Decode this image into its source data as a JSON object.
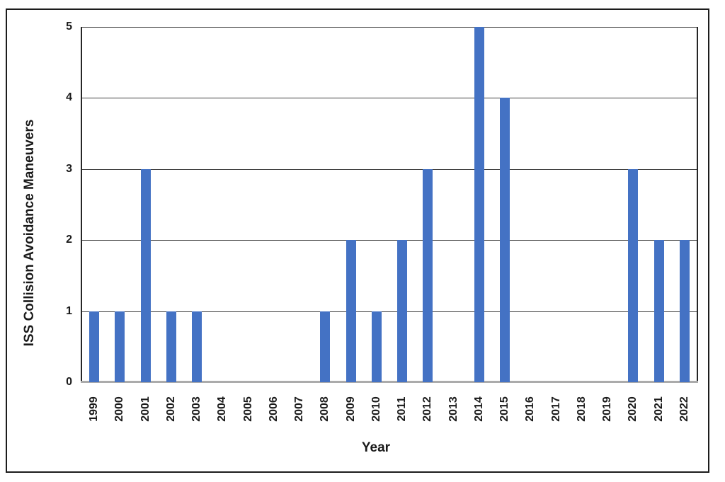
{
  "chart_data": {
    "type": "bar",
    "title": "",
    "xlabel": "Year",
    "ylabel": "ISS Collision Avoidance Maneuvers",
    "categories": [
      "1999",
      "2000",
      "2001",
      "2002",
      "2003",
      "2004",
      "2005",
      "2006",
      "2007",
      "2008",
      "2009",
      "2010",
      "2011",
      "2012",
      "2013",
      "2014",
      "2015",
      "2016",
      "2017",
      "2018",
      "2019",
      "2020",
      "2021",
      "2022"
    ],
    "values": [
      1,
      1,
      3,
      1,
      1,
      0,
      0,
      0,
      0,
      1,
      2,
      1,
      2,
      3,
      0,
      5,
      4,
      0,
      0,
      0,
      0,
      3,
      2,
      2
    ],
    "ylim": [
      0,
      5
    ],
    "yticks": [
      0,
      1,
      2,
      3,
      4,
      5
    ],
    "grid": true,
    "legend": false,
    "bar_color": "#4472C4",
    "gridline_color": "#3f3f3f",
    "axis_line_color": "#262626",
    "zero_line_color": "#ABABAB",
    "frame_border_color": "#1c1c1c",
    "text_color": "#1a1a1a",
    "background_color": "#ffffff"
  }
}
